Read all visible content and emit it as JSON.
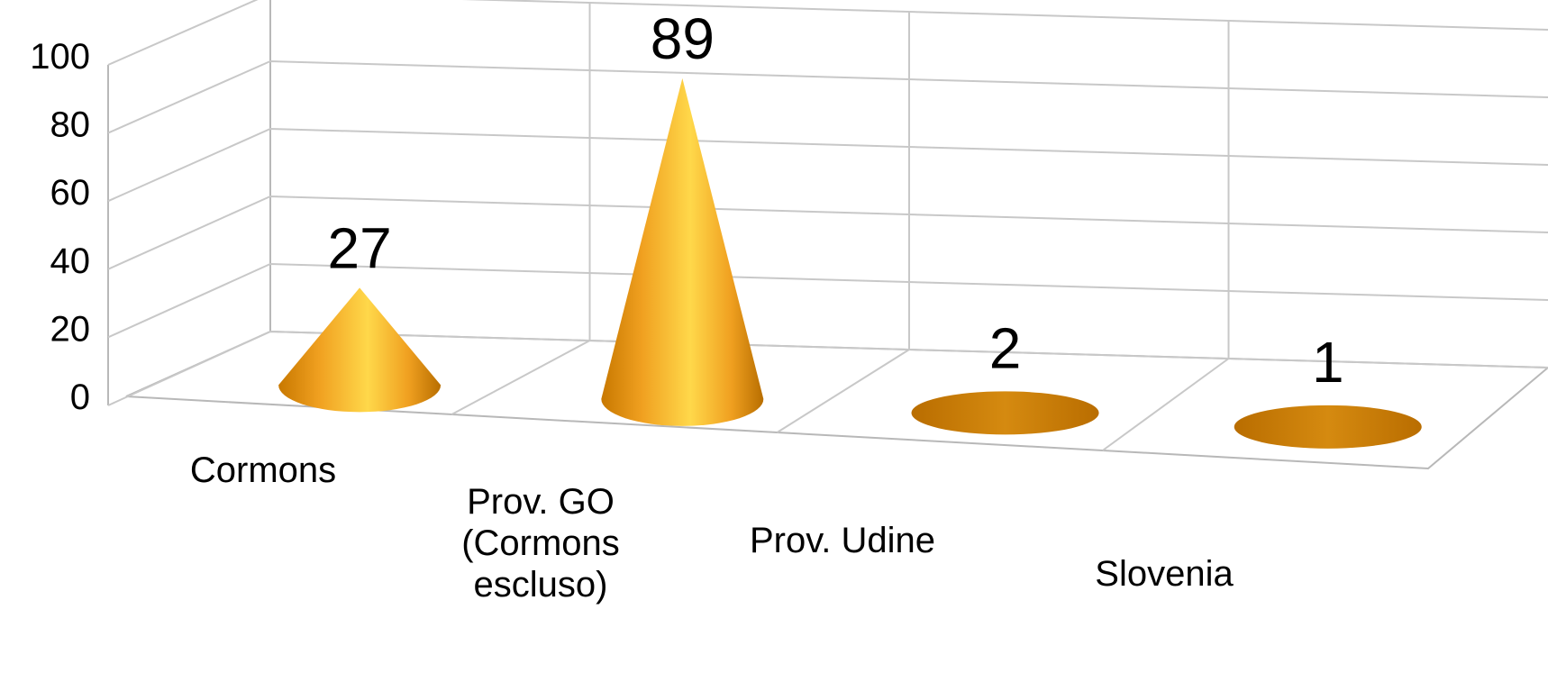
{
  "chart_data": {
    "type": "bar",
    "style": "3d-cone",
    "categories": [
      "Cormons",
      "Prov. GO (Cormons escluso)",
      "Prov. Udine",
      "Slovenia"
    ],
    "category_label_lines": [
      [
        "Cormons"
      ],
      [
        "Prov. GO",
        "(Cormons",
        "escluso)"
      ],
      [
        "Prov. Udine"
      ],
      [
        "Slovenia"
      ]
    ],
    "values": [
      27,
      89,
      2,
      1
    ],
    "data_labels": [
      "27",
      "89",
      "2",
      "1"
    ],
    "ylim": [
      0,
      100
    ],
    "yticks": [
      0,
      20,
      40,
      60,
      80,
      100
    ],
    "ytick_labels": [
      "0",
      "20",
      "40",
      "60",
      "80",
      "100"
    ],
    "title": "",
    "xlabel": "",
    "ylabel": "",
    "grid": true,
    "legend": "none",
    "colors": {
      "cone_dark": "#c87800",
      "cone_mid": "#f5a623",
      "cone_light": "#ffd84a",
      "disc": "#c87a0a"
    }
  }
}
